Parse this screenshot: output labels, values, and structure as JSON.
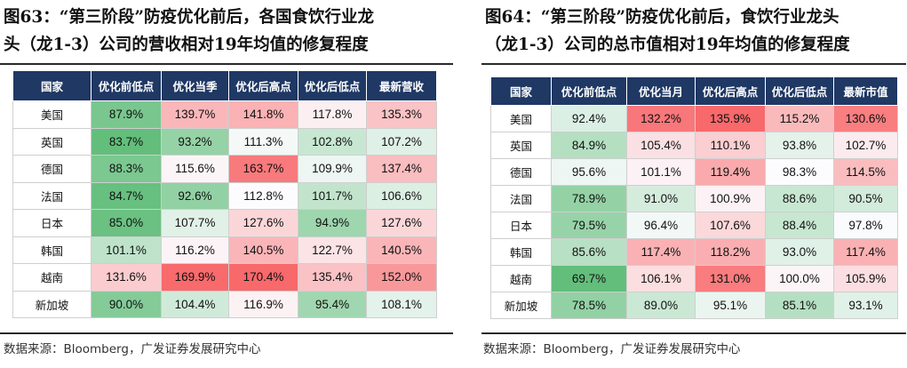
{
  "left": {
    "title_lines": [
      "图63：“第三阶段”防疫优化前后，各国食饮行业龙",
      "头（龙1-3）公司的营收相对19年均值的修复程度"
    ],
    "columns": [
      "国家",
      "优化前低点",
      "优化当季",
      "优化后高点",
      "优化后低点",
      "最新营收"
    ],
    "rows": [
      [
        "美国",
        "87.9%",
        "139.7%",
        "141.8%",
        "117.8%",
        "135.3%"
      ],
      [
        "英国",
        "83.7%",
        "93.2%",
        "111.3%",
        "102.8%",
        "107.2%"
      ],
      [
        "德国",
        "88.3%",
        "115.6%",
        "163.7%",
        "109.9%",
        "137.4%"
      ],
      [
        "法国",
        "84.7%",
        "92.6%",
        "112.8%",
        "101.7%",
        "106.6%"
      ],
      [
        "日本",
        "85.0%",
        "107.7%",
        "127.6%",
        "94.9%",
        "127.6%"
      ],
      [
        "韩国",
        "101.1%",
        "116.2%",
        "140.5%",
        "122.7%",
        "140.5%"
      ],
      [
        "越南",
        "131.6%",
        "169.9%",
        "170.4%",
        "135.4%",
        "152.0%"
      ],
      [
        "新加坡",
        "90.0%",
        "104.4%",
        "116.9%",
        "95.4%",
        "108.1%"
      ]
    ],
    "source": "数据来源：Bloomberg，广发证券发展研究中心"
  },
  "right": {
    "title_lines": [
      "图64：“第三阶段”防疫优化前后，食饮行业龙头",
      "（龙1-3）公司的总市值相对19年均值的修复程度"
    ],
    "columns": [
      "国家",
      "优化前低点",
      "优化当月",
      "优化后高点",
      "优化后低点",
      "最新市值"
    ],
    "rows": [
      [
        "美国",
        "92.4%",
        "132.2%",
        "135.9%",
        "115.2%",
        "130.6%"
      ],
      [
        "英国",
        "84.9%",
        "105.4%",
        "110.1%",
        "93.8%",
        "102.7%"
      ],
      [
        "德国",
        "95.6%",
        "101.1%",
        "119.4%",
        "98.3%",
        "114.5%"
      ],
      [
        "法国",
        "78.9%",
        "91.0%",
        "100.9%",
        "88.6%",
        "90.5%"
      ],
      [
        "日本",
        "79.5%",
        "96.4%",
        "107.6%",
        "88.4%",
        "97.8%"
      ],
      [
        "韩国",
        "85.6%",
        "117.4%",
        "118.2%",
        "93.0%",
        "117.4%"
      ],
      [
        "越南",
        "69.7%",
        "106.1%",
        "131.0%",
        "100.0%",
        "105.9%"
      ],
      [
        "新加坡",
        "78.5%",
        "89.0%",
        "95.1%",
        "85.1%",
        "93.1%"
      ]
    ],
    "source": "数据来源：Bloomberg，广发证券发展研究中心"
  },
  "colors": {
    "header_bg": "#1f3864",
    "low_green": "#63be7b",
    "mid_white": "#fcfcff",
    "high_red": "#f8696b"
  }
}
